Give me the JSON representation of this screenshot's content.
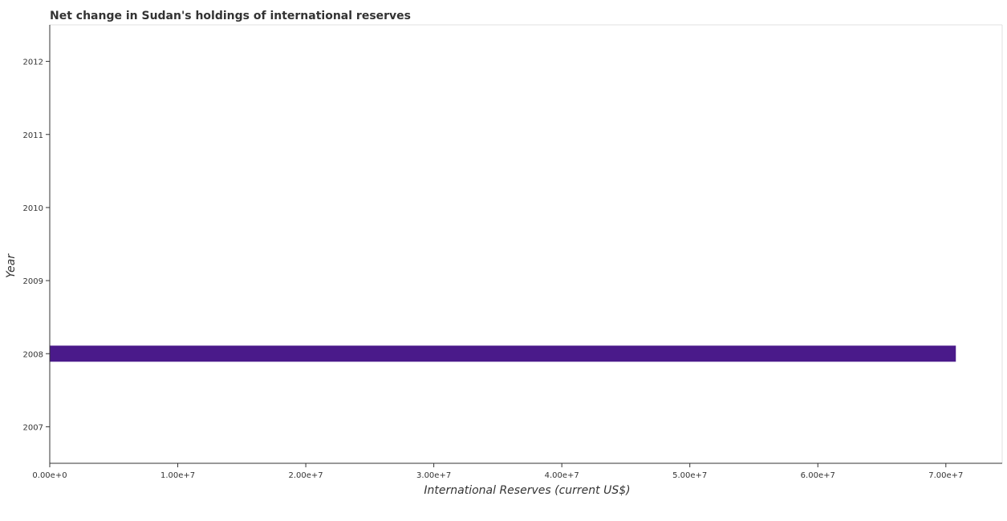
{
  "chart_data": {
    "type": "bar",
    "orientation": "horizontal",
    "title": "Net change in Sudan's holdings of international reserves",
    "xlabel": "International Reserves (current US$)",
    "ylabel": "Year",
    "categories": [
      "2007",
      "2008",
      "2009",
      "2010",
      "2011",
      "2012"
    ],
    "series": [
      {
        "values": [
          0,
          70780000,
          0,
          0,
          0,
          0
        ]
      }
    ],
    "xlim": [
      0,
      74400000
    ],
    "x_ticks": [
      0,
      10000000,
      20000000,
      30000000,
      40000000,
      50000000,
      60000000,
      70000000
    ],
    "x_tick_labels": [
      "0.00e+0",
      "1.00e+7",
      "2.00e+7",
      "3.00e+7",
      "4.00e+7",
      "5.00e+7",
      "6.00e+7",
      "7.00e+7"
    ],
    "grid": false,
    "bar_color": "#4a1a8a"
  }
}
